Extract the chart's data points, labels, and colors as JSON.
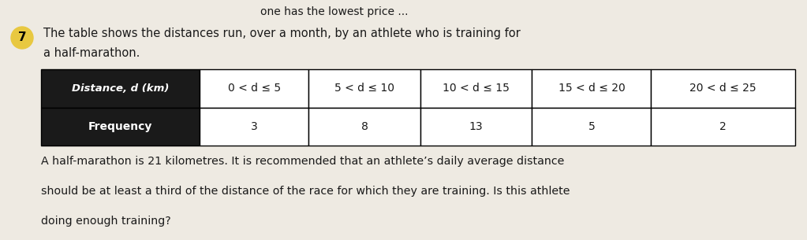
{
  "top_text": "one has the lowest price ...",
  "question_number": "7",
  "question_number_bg": "#e8c840",
  "intro_line1": "The table shows the distances run, over a month, by an athlete who is training for",
  "intro_line2": "a half-marathon.",
  "header_row": [
    "Distance, d (km)",
    "0 < d ≤ 5",
    "5 < d ≤ 10",
    "10 < d ≤ 15",
    "15 < d ≤ 20",
    "20 < d ≤ 25"
  ],
  "data_row_label": "Frequency",
  "data_row_values": [
    "3",
    "8",
    "13",
    "5",
    "2"
  ],
  "footer_line1": "A half-marathon is 21 kilometres. It is recommended that an athlete’s daily average distance",
  "footer_line2": "should be at least a third of the distance of the race for which they are training. Is this athlete",
  "footer_line3": "doing enough training?",
  "header_bg": "#1a1a1a",
  "header_fg": "#ffffff",
  "table_border": "#000000",
  "cell_bg": "#ffffff",
  "body_text_color": "#1a1a1a",
  "bg_color": "#eeeae2"
}
